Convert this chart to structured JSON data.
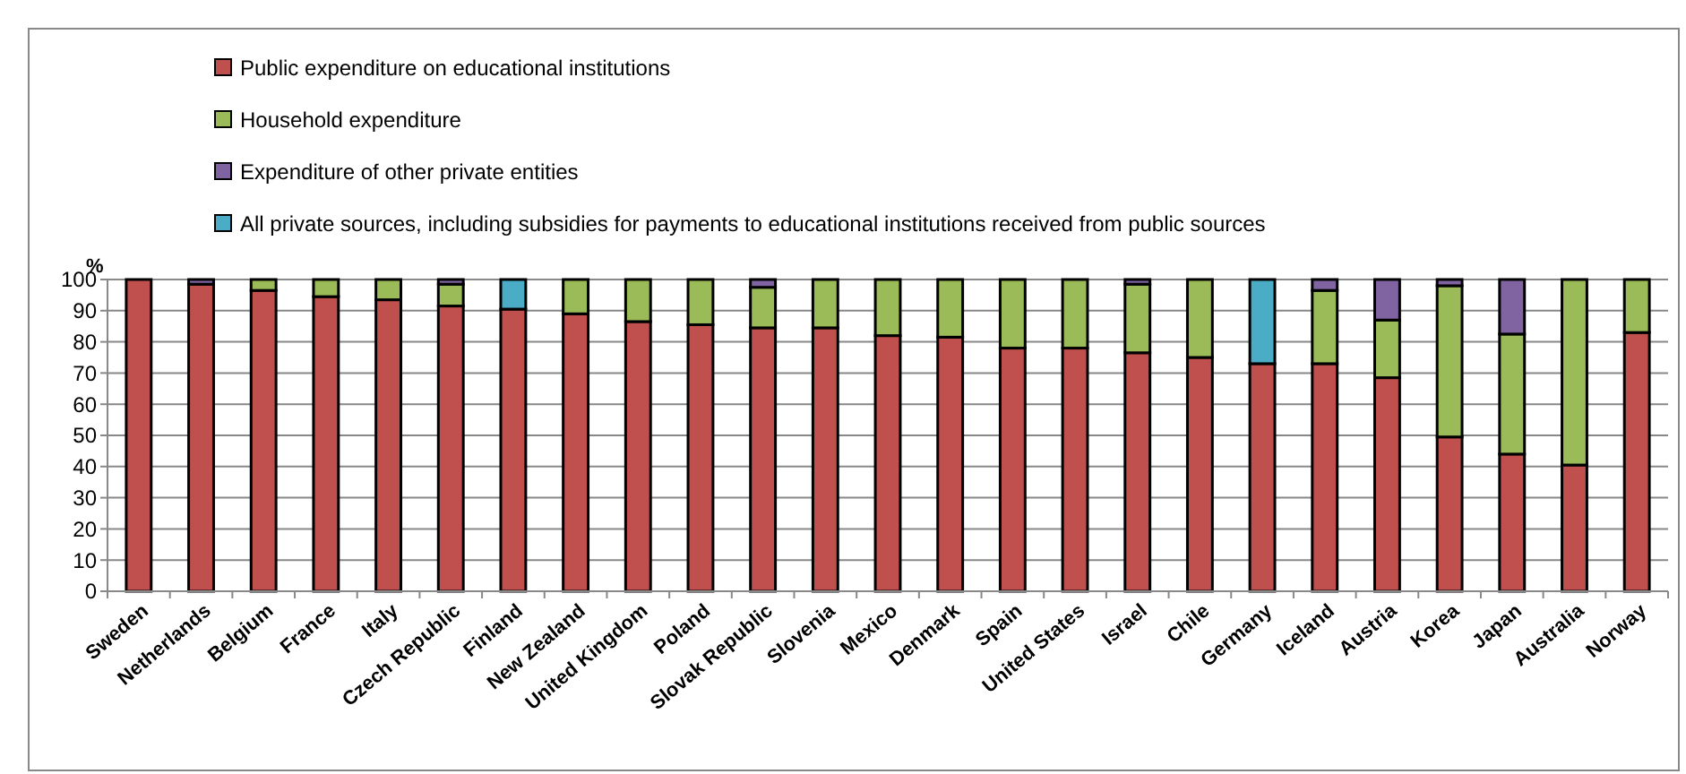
{
  "chart_data": {
    "type": "bar",
    "stacked": true,
    "ylabel": "%",
    "categories": [
      "Sweden",
      "Netherlands",
      "Belgium",
      "France",
      "Italy",
      "Czech Republic",
      "Finland",
      "New Zealand",
      "United Kingdom",
      "Poland",
      "Slovak Republic",
      "Slovenia",
      "Mexico",
      "Denmark",
      "Spain",
      "United States",
      "Israel",
      "Chile",
      "Germany",
      "Iceland",
      "Austria",
      "Korea",
      "Japan",
      "Australia",
      "Norway"
    ],
    "series": [
      {
        "name": "Public expenditure on educational institutions",
        "color": "#c0504d",
        "values": [
          100,
          98.5,
          96.5,
          94.5,
          93.5,
          91.5,
          90.5,
          89,
          86.5,
          85.5,
          84.5,
          84.5,
          82,
          81.5,
          78,
          78,
          76.5,
          75,
          73,
          73,
          68.5,
          49.5,
          44,
          40.5,
          83
        ]
      },
      {
        "name": "Household expenditure",
        "color": "#9bbb59",
        "values": [
          0,
          0,
          3.5,
          5.5,
          6.5,
          7,
          0,
          11,
          13.5,
          14.5,
          13,
          15.5,
          18,
          18.5,
          22,
          22,
          22,
          25,
          0,
          23.5,
          18.5,
          48.5,
          38.5,
          59.5,
          17
        ]
      },
      {
        "name": "Expenditure of other private entities",
        "color": "#8064a2",
        "values": [
          0,
          1.5,
          0,
          0,
          0,
          1.5,
          0,
          0,
          0,
          0,
          2.5,
          0,
          0,
          0,
          0,
          0,
          1.5,
          0,
          0,
          3.5,
          13,
          2,
          17.5,
          0,
          0
        ]
      },
      {
        "name": "All private sources, including subsidies for payments to educational institutions  received from public sources",
        "color": "#4bacc6",
        "values": [
          0,
          0,
          0,
          0,
          0,
          0,
          9.5,
          0,
          0,
          0,
          0,
          0,
          0,
          0,
          0,
          0,
          0,
          0,
          27,
          0,
          0,
          0,
          0,
          0,
          0
        ]
      }
    ],
    "ylim": [
      0,
      100
    ],
    "yticks": [
      0,
      10,
      20,
      30,
      40,
      50,
      60,
      70,
      80,
      90,
      100
    ],
    "grid": "y",
    "legend": "top left"
  }
}
